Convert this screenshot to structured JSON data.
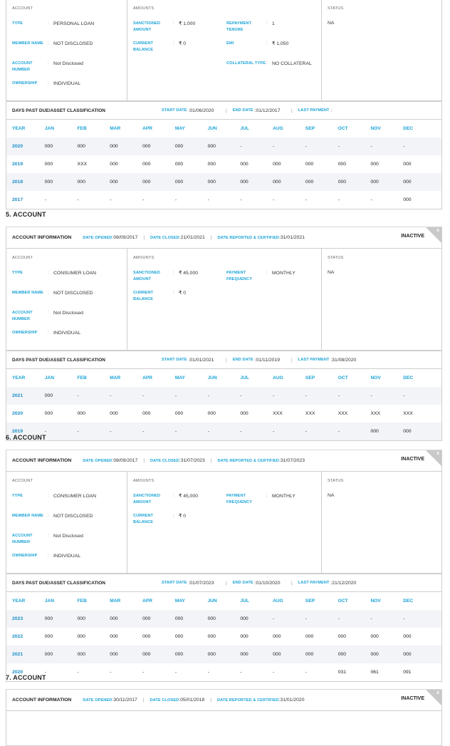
{
  "labels": {
    "account_section": "ACCOUNT",
    "amounts_section": "AMOUNTS",
    "status_section": "STATUS",
    "type": "TYPE",
    "member_name": "MEMBER NAME",
    "account_number": "ACCOUNT NUMBER",
    "ownership": "OWNERSHIP",
    "sanctioned_amount": "SANCTIONED AMOUNT",
    "current_balance": "CURRENT BALANCE",
    "repayment_tenure": "REPAYMENT TENURE",
    "emi": "EMI",
    "collateral_type": "COLLATERAL TYPE",
    "payment_frequency": "PAYMENT FREQUENCY",
    "account_information": "ACCOUNT INFORMATION",
    "date_opened": "DATE OPENED",
    "date_closed": "DATE CLOSED",
    "date_reported": "DATE REPORTED & CERTIFIED",
    "dpd_title": "DAYS PAST DUE/ASSET CLASSIFICATION",
    "start_date": "START DATE",
    "end_date": "END DATE",
    "last_payment": "LAST PAYMENT",
    "close": "x",
    "months": [
      "YEAR",
      "JAN",
      "FEB",
      "MAR",
      "APR",
      "MAY",
      "JUN",
      "JUL",
      "AUG",
      "SEP",
      "OCT",
      "NOV",
      "DEC"
    ]
  },
  "accounts": [
    {
      "title": null,
      "header": null,
      "type": "PERSONAL LOAN",
      "member_name": "NOT DISCLOSED",
      "account_number": "Not Disclosed",
      "ownership": "INDIVIDUAL",
      "amounts": [
        {
          "label_key": "sanctioned_amount",
          "value": "₹ 1,000"
        },
        {
          "label_key": "repayment_tenure",
          "value": "1"
        },
        {
          "label_key": "current_balance",
          "value": "₹ 0"
        },
        {
          "label_key": "emi",
          "value": "₹ 1,050"
        },
        {
          "label_key": null,
          "value": null
        },
        {
          "label_key": "collateral_type",
          "value": "NO COLLATERAL"
        }
      ],
      "status": "NA",
      "dpd": {
        "start_date": "01/06/2020",
        "end_date": "01/12/2017",
        "last_payment": "",
        "rows": [
          [
            "2020",
            "000",
            "000",
            "000",
            "000",
            "000",
            "000",
            "-",
            "-",
            "-",
            "-",
            "-",
            "-"
          ],
          [
            "2019",
            "000",
            "XXX",
            "000",
            "000",
            "000",
            "000",
            "000",
            "000",
            "000",
            "000",
            "000",
            "000"
          ],
          [
            "2018",
            "000",
            "000",
            "000",
            "000",
            "000",
            "000",
            "000",
            "000",
            "000",
            "000",
            "000",
            "000"
          ],
          [
            "2017",
            "-",
            "-",
            "-",
            "-",
            "-",
            "-",
            "-",
            "-",
            "-",
            "-",
            "-",
            "000"
          ]
        ]
      }
    },
    {
      "title": "5. ACCOUNT",
      "header": {
        "date_opened": "08/09/2017",
        "date_closed": "21/01/2021",
        "date_reported": "31/01/2021",
        "status": "INACTIVE"
      },
      "type": "CONSUMER LOAN",
      "member_name": "NOT DISCLOSED",
      "account_number": "Not Disclosed",
      "ownership": "INDIVIDUAL",
      "amounts": [
        {
          "label_key": "sanctioned_amount",
          "value": "₹ 45,000"
        },
        {
          "label_key": "payment_frequency",
          "value": "MONTHLY"
        },
        {
          "label_key": "current_balance",
          "value": "₹ 0"
        }
      ],
      "status": "NA",
      "dpd": {
        "start_date": "01/01/2021",
        "end_date": "01/11/2019",
        "last_payment": "31/08/2020",
        "rows": [
          [
            "2021",
            "000",
            "-",
            "-",
            "-",
            "-",
            "-",
            "-",
            "-",
            "-",
            "-",
            "-",
            "-"
          ],
          [
            "2020",
            "000",
            "000",
            "000",
            "000",
            "000",
            "000",
            "000",
            "XXX",
            "XXX",
            "XXX",
            "XXX",
            "XXX"
          ],
          [
            "2019",
            "-",
            "-",
            "-",
            "-",
            "-",
            "-",
            "-",
            "-",
            "-",
            "-",
            "000",
            "000"
          ]
        ]
      }
    },
    {
      "title": "6. ACCOUNT",
      "header": {
        "date_opened": "08/09/2017",
        "date_closed": "31/07/2023",
        "date_reported": "31/07/2023",
        "status": "INACTIVE"
      },
      "type": "CONSUMER LOAN",
      "member_name": "NOT DISCLOSED",
      "account_number": "Not Disclosed",
      "ownership": "INDIVIDUAL",
      "amounts": [
        {
          "label_key": "sanctioned_amount",
          "value": "₹ 45,000"
        },
        {
          "label_key": "payment_frequency",
          "value": "MONTHLY"
        },
        {
          "label_key": "current_balance",
          "value": "₹ 0"
        }
      ],
      "status": "NA",
      "dpd": {
        "start_date": "01/07/2023",
        "end_date": "01/10/2020",
        "last_payment": "21/12/2020",
        "rows": [
          [
            "2023",
            "000",
            "000",
            "000",
            "000",
            "000",
            "000",
            "000",
            "-",
            "-",
            "-",
            "-",
            "-"
          ],
          [
            "2022",
            "000",
            "000",
            "000",
            "000",
            "000",
            "000",
            "000",
            "000",
            "000",
            "000",
            "000",
            "000"
          ],
          [
            "2021",
            "000",
            "000",
            "000",
            "000",
            "000",
            "000",
            "000",
            "000",
            "000",
            "000",
            "000",
            "000"
          ],
          [
            "2020",
            "-",
            "-",
            "-",
            "-",
            "-",
            "-",
            "-",
            "-",
            "-",
            "031",
            "061",
            "091"
          ]
        ]
      }
    },
    {
      "title": "7. ACCOUNT",
      "header": {
        "date_opened": "30/11/2017",
        "date_closed": "05/01/2018",
        "date_reported": "31/01/2020",
        "status": "INACTIVE"
      }
    }
  ]
}
